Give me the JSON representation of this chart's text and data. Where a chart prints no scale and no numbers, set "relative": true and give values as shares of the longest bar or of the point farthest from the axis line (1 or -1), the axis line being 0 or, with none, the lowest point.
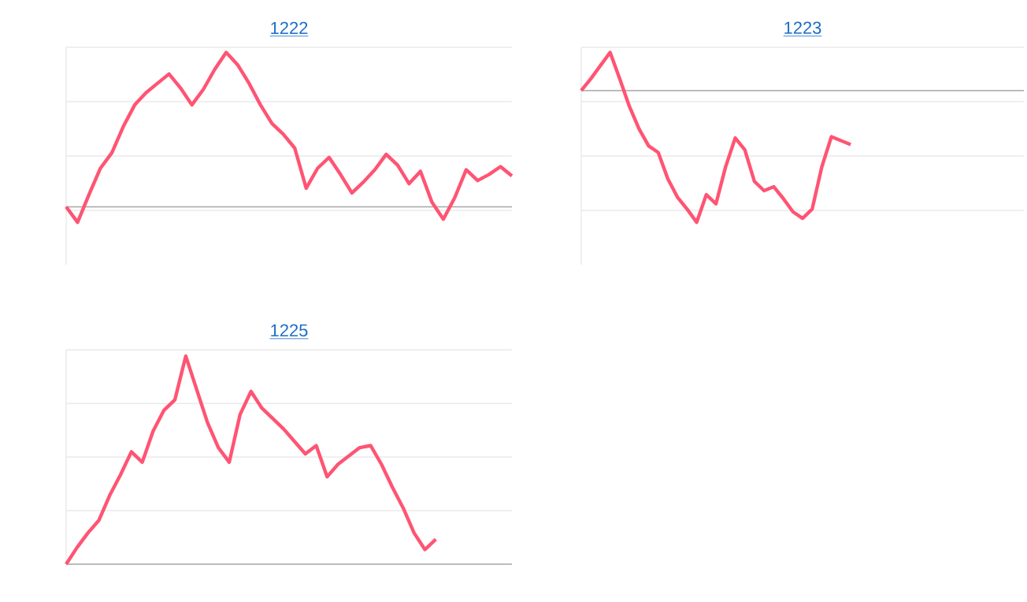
{
  "chart_data": [
    {
      "type": "line",
      "title": "1222",
      "relative": true,
      "grid": "y",
      "marker": "none",
      "line_style": "solid",
      "categories": [
        null,
        null,
        null,
        null,
        null,
        null,
        null,
        null,
        null,
        null,
        null,
        null,
        null,
        null,
        null,
        null,
        null,
        null,
        null,
        null,
        null,
        null,
        null,
        null,
        null,
        null,
        null,
        null,
        null,
        null,
        null,
        null,
        null,
        null,
        null,
        null,
        null,
        null,
        null,
        null
      ],
      "series": [
        {
          "color": "#ff5473",
          "values": [
            0,
            -0.1,
            0.08,
            0.25,
            0.35,
            0.52,
            0.66,
            0.74,
            0.8,
            0.86,
            0.77,
            0.66,
            0.76,
            0.89,
            1.0,
            0.92,
            0.8,
            0.66,
            0.54,
            0.47,
            0.38,
            0.12,
            0.25,
            0.32,
            0.21,
            0.09,
            0.16,
            0.24,
            0.34,
            0.27,
            0.15,
            0.23,
            0.03,
            -0.08,
            0.06,
            0.24,
            0.17,
            0.21,
            0.26,
            0.2
          ]
        }
      ]
    },
    {
      "type": "line",
      "title": "1223",
      "relative": true,
      "grid": "y",
      "marker": "none",
      "line_style": "solid",
      "categories": [
        null,
        null,
        null,
        null,
        null,
        null,
        null,
        null,
        null,
        null,
        null,
        null,
        null,
        null,
        null,
        null,
        null,
        null,
        null,
        null,
        null,
        null,
        null,
        null,
        null,
        null,
        null,
        null,
        null,
        null,
        null,
        null,
        null,
        null,
        null,
        null,
        null,
        null,
        null,
        null,
        null,
        null,
        null,
        null,
        null,
        null,
        null
      ],
      "series": [
        {
          "color": "#ff5473",
          "values": [
            0,
            0.09,
            0.19,
            0.29,
            0.09,
            -0.12,
            -0.29,
            -0.42,
            -0.47,
            -0.67,
            -0.81,
            -0.9,
            -1.0,
            -0.79,
            -0.86,
            -0.58,
            -0.36,
            -0.45,
            -0.69,
            -0.76,
            -0.73,
            -0.82,
            -0.92,
            -0.97,
            -0.9,
            -0.58,
            -0.35,
            -0.38,
            -0.41,
            null,
            null,
            null,
            null,
            null,
            null,
            null,
            null,
            null,
            null,
            null,
            null,
            null,
            null,
            null,
            null,
            null,
            null
          ]
        }
      ]
    },
    {
      "type": "line",
      "title": "1225",
      "relative": true,
      "grid": "y",
      "marker": "none",
      "line_style": "solid",
      "categories": [
        null,
        null,
        null,
        null,
        null,
        null,
        null,
        null,
        null,
        null,
        null,
        null,
        null,
        null,
        null,
        null,
        null,
        null,
        null,
        null,
        null,
        null,
        null,
        null,
        null,
        null,
        null,
        null,
        null,
        null,
        null,
        null,
        null,
        null,
        null,
        null,
        null,
        null,
        null,
        null,
        null,
        null
      ],
      "series": [
        {
          "color": "#ff5473",
          "values": [
            0,
            0.08,
            0.15,
            0.21,
            0.33,
            0.43,
            0.54,
            0.49,
            0.64,
            0.74,
            0.79,
            1.0,
            0.84,
            0.68,
            0.56,
            0.49,
            0.72,
            0.83,
            0.75,
            0.7,
            0.65,
            0.59,
            0.53,
            0.57,
            0.42,
            0.48,
            0.52,
            0.56,
            0.57,
            0.48,
            0.37,
            0.27,
            0.15,
            0.07,
            0.12,
            null,
            null,
            null,
            null,
            null,
            null,
            null
          ]
        }
      ]
    }
  ]
}
